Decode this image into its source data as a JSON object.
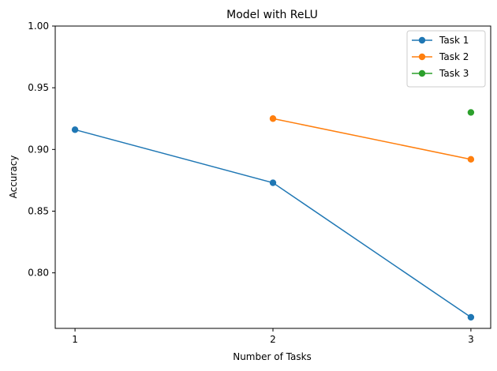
{
  "chart_data": {
    "type": "line",
    "title": "Model with ReLU",
    "xlabel": "Number of Tasks",
    "ylabel": "Accuracy",
    "x_ticks": [
      1,
      2,
      3
    ],
    "y_ticks": [
      "0.80",
      "0.85",
      "0.90",
      "0.95",
      "1.00"
    ],
    "xlim": [
      0.9,
      3.1
    ],
    "ylim": [
      0.755,
      1.0
    ],
    "grid": false,
    "legend_position": "top-right",
    "series": [
      {
        "name": "Task 1",
        "color": "#1f77b4",
        "x": [
          1,
          2,
          3
        ],
        "y": [
          0.916,
          0.873,
          0.764
        ]
      },
      {
        "name": "Task 2",
        "color": "#ff7f0e",
        "x": [
          2,
          3
        ],
        "y": [
          0.925,
          0.892
        ]
      },
      {
        "name": "Task 3",
        "color": "#2ca02c",
        "x": [
          3
        ],
        "y": [
          0.93
        ]
      }
    ]
  }
}
